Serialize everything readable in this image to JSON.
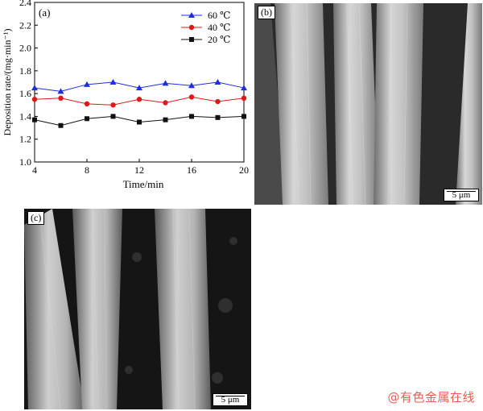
{
  "figure": {
    "panel_a_label": "(a)",
    "panel_b_label": "(b)",
    "panel_c_label": "(c)",
    "scale_b": "5 μm",
    "scale_c": "5 μm",
    "watermark": "@有色金属在线"
  },
  "chart_data": {
    "type": "line",
    "xlabel": "Time/min",
    "ylabel": "Deposition rate/(mg·min⁻¹)",
    "xlim": [
      4,
      20
    ],
    "ylim": [
      1.0,
      2.4
    ],
    "xticks": [
      4,
      8,
      12,
      16,
      20
    ],
    "yticks": [
      1.0,
      1.2,
      1.4,
      1.6,
      1.8,
      2.0,
      2.2,
      2.4
    ],
    "legend_position": "top-right",
    "grid": false,
    "x": [
      4,
      6,
      8,
      10,
      12,
      14,
      16,
      18,
      20
    ],
    "series": [
      {
        "name": "60 ℃",
        "marker": "triangle",
        "color": "#1f2fd6",
        "values": [
          1.65,
          1.62,
          1.68,
          1.7,
          1.65,
          1.69,
          1.67,
          1.7,
          1.65
        ]
      },
      {
        "name": "40 ℃",
        "marker": "circle",
        "color": "#e01818",
        "values": [
          1.55,
          1.56,
          1.51,
          1.5,
          1.55,
          1.52,
          1.57,
          1.53,
          1.56
        ]
      },
      {
        "name": "20 ℃",
        "marker": "square",
        "color": "#111111",
        "values": [
          1.37,
          1.32,
          1.38,
          1.4,
          1.35,
          1.37,
          1.4,
          1.39,
          1.4
        ]
      }
    ]
  }
}
